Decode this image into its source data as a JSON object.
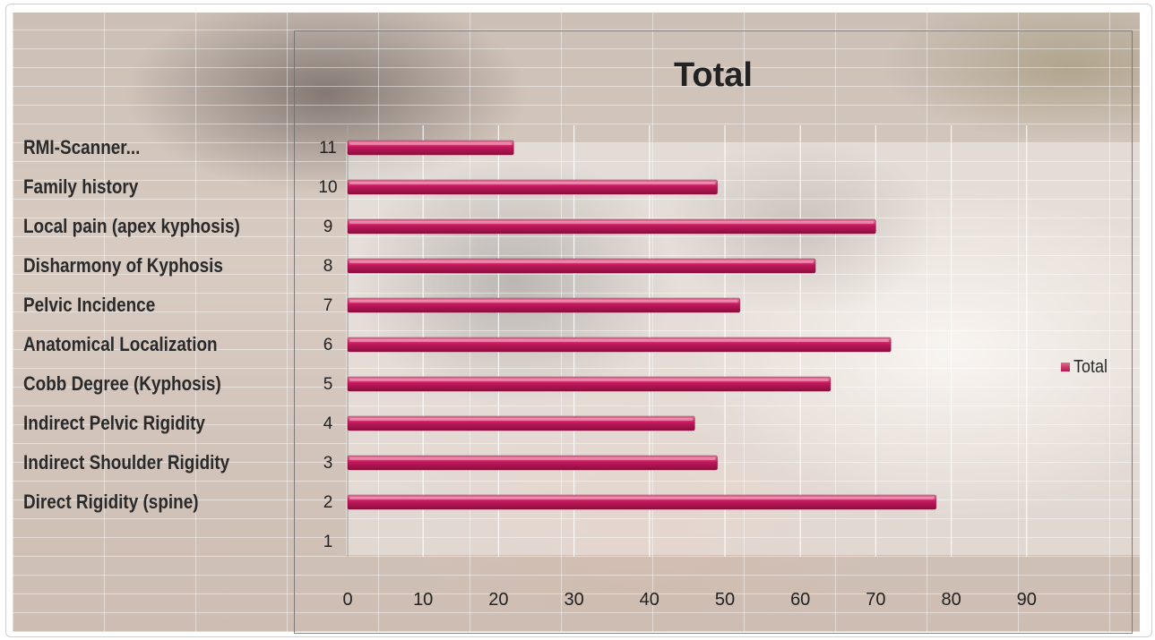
{
  "chart_data": {
    "type": "bar",
    "orientation": "horizontal",
    "title": "Total",
    "categories": [
      "1",
      "2",
      "3",
      "4",
      "5",
      "6",
      "7",
      "8",
      "9",
      "10",
      "11"
    ],
    "category_labels": [
      "",
      "Direct Rigidity (spine)",
      "Indirect Shoulder Rigidity",
      "Indirect Pelvic Rigidity",
      "Cobb Degree (Kyphosis)",
      "Anatomical Localization",
      "Pelvic Incidence",
      "Disharmony of Kyphosis",
      "Local pain (apex kyphosis)",
      "Family history",
      "RMI-Scanner..."
    ],
    "series": [
      {
        "name": "Total",
        "values": [
          0,
          78,
          49,
          46,
          64,
          72,
          52,
          62,
          70,
          49,
          22
        ]
      }
    ],
    "xlim": [
      0,
      90
    ],
    "xticks": [
      "0",
      "10",
      "20",
      "30",
      "40",
      "50",
      "60",
      "70",
      "80",
      "90"
    ],
    "grid": true,
    "legend": {
      "position": "right",
      "label": "Total"
    },
    "colors": {
      "bar": "#c2185b",
      "bar_highlight": "#e8789a",
      "bar_dark": "#8a0f3e"
    }
  }
}
